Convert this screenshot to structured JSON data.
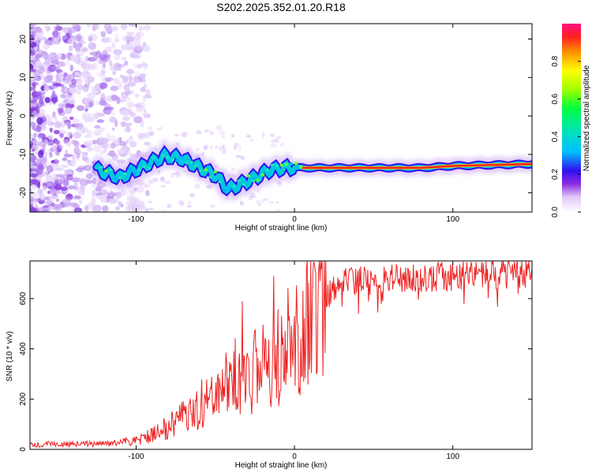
{
  "title": "S202.2025.352.01.20.R18",
  "chart_data": [
    {
      "type": "heatmap",
      "xlabel": "Height of straight line (km)",
      "ylabel": "Frequency (Hz)",
      "xlim": [
        -167,
        150
      ],
      "ylim": [
        -25,
        24
      ],
      "xticks": [
        -100,
        0,
        100
      ],
      "yticks": [
        20,
        10,
        0,
        -10,
        -20
      ],
      "colorbar": {
        "label": "Normalized spectral amplitude",
        "range": [
          0.0,
          1.0
        ],
        "ticks": [
          0.0,
          0.2,
          0.4,
          0.6,
          0.8
        ],
        "tick_labels": [
          "0.0",
          "0.2",
          "0.4",
          "0.6",
          "0.8"
        ]
      },
      "ridge": {
        "description": "dominant frequency trace",
        "points": [
          [
            -125,
            -14
          ],
          [
            -118,
            -15
          ],
          [
            -110,
            -16
          ],
          [
            -100,
            -14
          ],
          [
            -90,
            -12
          ],
          [
            -82,
            -10.5
          ],
          [
            -72,
            -11
          ],
          [
            -62,
            -13
          ],
          [
            -50,
            -15.5
          ],
          [
            -42,
            -19
          ],
          [
            -35,
            -18
          ],
          [
            -25,
            -16
          ],
          [
            -15,
            -14
          ],
          [
            -5,
            -13.5
          ],
          [
            10,
            -13.5
          ],
          [
            80,
            -13.5
          ],
          [
            100,
            -13
          ],
          [
            150,
            -12.5
          ]
        ]
      }
    },
    {
      "type": "line",
      "xlabel": "Height of straight line (km)",
      "ylabel": "SNR (10 * v/v)",
      "xlim": [
        -167,
        150
      ],
      "ylim": [
        0,
        750
      ],
      "xticks": [
        -100,
        0,
        100
      ],
      "yticks": [
        0,
        200,
        400,
        600
      ],
      "series": [
        {
          "name": "SNR",
          "color": "#ee2222",
          "envelope": [
            [
              -167,
              20
            ],
            [
              -120,
              22
            ],
            [
              -105,
              30
            ],
            [
              -95,
              45
            ],
            [
              -85,
              70
            ],
            [
              -75,
              110
            ],
            [
              -65,
              150
            ],
            [
              -55,
              200
            ],
            [
              -45,
              250
            ],
            [
              -35,
              300
            ],
            [
              -25,
              310
            ],
            [
              -15,
              340
            ],
            [
              -8,
              400
            ],
            [
              0,
              430
            ],
            [
              5,
              460
            ],
            [
              10,
              520
            ],
            [
              15,
              580
            ],
            [
              20,
              620
            ],
            [
              25,
              650
            ],
            [
              35,
              670
            ],
            [
              60,
              680
            ],
            [
              100,
              690
            ],
            [
              150,
              700
            ]
          ],
          "peaks": [
            [
              -33,
              590
            ],
            [
              -13,
              690
            ],
            [
              12,
              745
            ],
            [
              16,
              670
            ]
          ]
        }
      ]
    }
  ]
}
